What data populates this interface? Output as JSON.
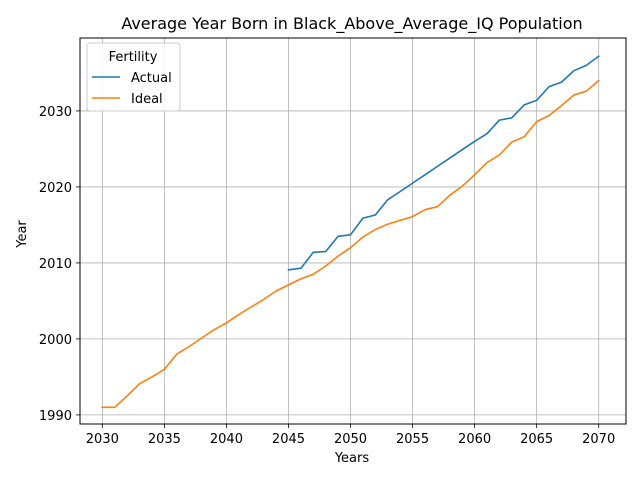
{
  "chart_data": {
    "type": "line",
    "title": "Average Year Born in Black_Above_Average_IQ Population",
    "xlabel": "Years",
    "ylabel": "Year",
    "xlim": [
      2028.2,
      2072.2
    ],
    "ylim": [
      1988.8,
      2039.6
    ],
    "xticks": [
      2030,
      2035,
      2040,
      2045,
      2050,
      2055,
      2060,
      2065,
      2070
    ],
    "yticks": [
      1990,
      2000,
      2010,
      2020,
      2030
    ],
    "grid": true,
    "legend": {
      "title": "Fertility",
      "placement": "upper-left"
    },
    "series": [
      {
        "name": "Actual",
        "color": "#1f77b4",
        "x": [
          2045,
          2046,
          2047,
          2048,
          2049,
          2050,
          2051,
          2052,
          2053,
          2054,
          2055,
          2056,
          2057,
          2058,
          2059,
          2060,
          2061,
          2062,
          2063,
          2064,
          2065,
          2066,
          2067,
          2068,
          2069,
          2070
        ],
        "y": [
          2009.1,
          2009.3,
          2011.4,
          2011.5,
          2013.5,
          2013.7,
          2015.9,
          2016.3,
          2018.3,
          2019.4,
          2020.5,
          2021.6,
          2022.7,
          2023.8,
          2024.9,
          2026.0,
          2027.0,
          2028.8,
          2029.1,
          2030.8,
          2031.4,
          2033.2,
          2033.8,
          2035.3,
          2036.0,
          2037.2
        ]
      },
      {
        "name": "Ideal",
        "color": "#ff7f0e",
        "x": [
          2030,
          2031,
          2032,
          2033,
          2034,
          2035,
          2036,
          2037,
          2038,
          2039,
          2040,
          2041,
          2042,
          2043,
          2044,
          2045,
          2046,
          2047,
          2048,
          2049,
          2050,
          2051,
          2052,
          2053,
          2054,
          2055,
          2056,
          2057,
          2058,
          2059,
          2060,
          2061,
          2062,
          2063,
          2064,
          2065,
          2066,
          2067,
          2068,
          2069,
          2070
        ],
        "y": [
          1991.0,
          1991.0,
          1992.5,
          1994.1,
          1995.0,
          1996.0,
          1998.0,
          1999.0,
          2000.1,
          2001.2,
          2002.1,
          2003.2,
          2004.2,
          2005.2,
          2006.3,
          2007.1,
          2007.9,
          2008.5,
          2009.6,
          2010.9,
          2012.0,
          2013.4,
          2014.4,
          2015.1,
          2015.6,
          2016.1,
          2017.0,
          2017.4,
          2018.9,
          2020.1,
          2021.6,
          2023.2,
          2024.2,
          2025.9,
          2026.6,
          2028.6,
          2029.4,
          2030.7,
          2032.1,
          2032.6,
          2034.0
        ]
      }
    ]
  }
}
